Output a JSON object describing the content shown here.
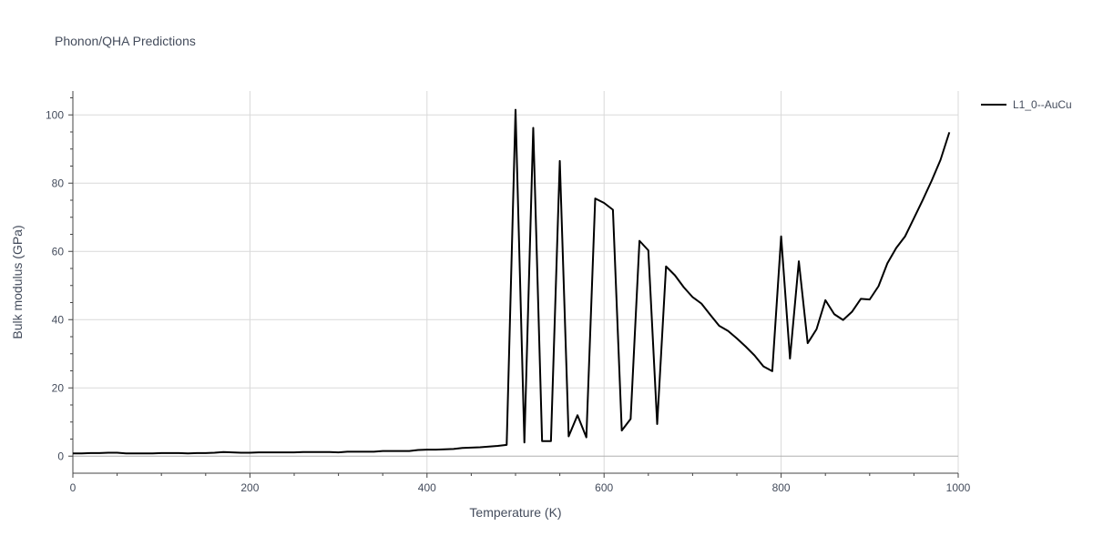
{
  "chart_data": {
    "type": "line",
    "title": "Phonon/QHA Predictions",
    "xlabel": "Temperature (K)",
    "ylabel": "Bulk modulus (GPa)",
    "xlim": [
      0,
      1000
    ],
    "ylim": [
      -5,
      107
    ],
    "x_ticks": [
      0,
      200,
      400,
      600,
      800,
      1000
    ],
    "y_ticks": [
      0,
      20,
      40,
      60,
      80,
      100
    ],
    "grid": true,
    "legend_position": "top-right",
    "series": [
      {
        "name": "L1_0--AuCu",
        "color": "#000000",
        "x": [
          0,
          10,
          20,
          30,
          40,
          50,
          60,
          70,
          80,
          90,
          100,
          110,
          120,
          130,
          140,
          150,
          160,
          170,
          180,
          190,
          200,
          210,
          220,
          230,
          240,
          250,
          260,
          270,
          280,
          290,
          300,
          310,
          320,
          330,
          340,
          350,
          360,
          370,
          380,
          390,
          400,
          410,
          420,
          430,
          440,
          450,
          460,
          470,
          480,
          490,
          500,
          510,
          520,
          530,
          540,
          550,
          560,
          570,
          580,
          590,
          600,
          610,
          620,
          630,
          640,
          650,
          660,
          670,
          680,
          690,
          700,
          710,
          720,
          730,
          740,
          750,
          760,
          770,
          780,
          790,
          800,
          810,
          820,
          830,
          840,
          850,
          860,
          870,
          880,
          890,
          900,
          910,
          920,
          930,
          940,
          950,
          960,
          970,
          980,
          990
        ],
        "y": [
          0.8,
          0.8,
          0.9,
          0.9,
          1.0,
          1.0,
          0.8,
          0.8,
          0.8,
          0.8,
          0.9,
          0.9,
          0.9,
          0.8,
          0.9,
          0.9,
          1.0,
          1.2,
          1.1,
          1.0,
          1.0,
          1.1,
          1.1,
          1.1,
          1.1,
          1.1,
          1.2,
          1.2,
          1.2,
          1.2,
          1.1,
          1.3,
          1.3,
          1.3,
          1.3,
          1.5,
          1.5,
          1.5,
          1.5,
          1.8,
          1.9,
          1.9,
          2.0,
          2.1,
          2.4,
          2.5,
          2.6,
          2.8,
          3.0,
          3.3,
          101.5,
          4.0,
          96.2,
          4.4,
          4.4,
          86.5,
          5.8,
          12.0,
          5.5,
          75.5,
          74.2,
          72.2,
          7.5,
          10.9,
          63.1,
          60.3,
          9.4,
          55.6,
          53.0,
          49.5,
          46.6,
          44.7,
          41.4,
          38.2,
          36.7,
          34.5,
          32.1,
          29.5,
          26.3,
          24.9,
          64.4,
          28.6,
          57.1,
          33.1,
          37.2,
          45.7,
          41.6,
          39.9,
          42.3,
          46.1,
          45.9,
          49.8,
          56.5,
          61.0,
          64.4,
          69.7,
          75.1,
          80.7,
          86.8,
          94.9
        ]
      }
    ]
  }
}
